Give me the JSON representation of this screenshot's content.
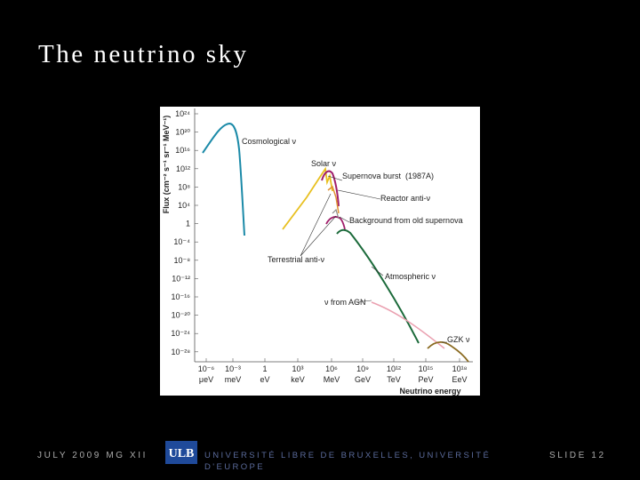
{
  "slide": {
    "title": "The neutrino sky",
    "footer_date": "JULY 2009 MG XII",
    "logo": "ULB",
    "institution_line1": "UNIVERSITÉ LIBRE DE BRUXELLES, UNIVERSITÉ",
    "institution_line2": "D'EUROPE",
    "slide_number": "SLIDE 12"
  },
  "figure": {
    "y_axis_label": "Flux (cm⁻² s⁻¹ sr⁻¹ MeV⁻¹)",
    "x_axis_label": "Neutrino energy",
    "y_tick_labels": [
      "10²⁴",
      "10²⁰",
      "10¹⁶",
      "10¹²",
      "10⁸",
      "10⁴",
      "1",
      "10⁻⁴",
      "10⁻⁸",
      "10⁻¹²",
      "10⁻¹⁶",
      "10⁻²⁰",
      "10⁻²⁴",
      "10⁻²⁸"
    ],
    "x_tick_labels": [
      {
        "power": "10⁻⁶",
        "unit": "μeV"
      },
      {
        "power": "10⁻³",
        "unit": "meV"
      },
      {
        "power": "1",
        "unit": "eV"
      },
      {
        "power": "10³",
        "unit": "keV"
      },
      {
        "power": "10⁶",
        "unit": "MeV"
      },
      {
        "power": "10⁹",
        "unit": "GeV"
      },
      {
        "power": "10¹²",
        "unit": "TeV"
      },
      {
        "power": "10¹⁵",
        "unit": "PeV"
      },
      {
        "power": "10¹⁸",
        "unit": "EeV"
      }
    ],
    "annotations": [
      "Cosmological ν",
      "Solar ν",
      "Supernova burst",
      "(1987A)",
      "Reactor anti-ν",
      "Background from old supernova",
      "Terrestrial anti-ν",
      "Atmospheric ν",
      "ν from AGN",
      "GZK ν"
    ]
  }
}
